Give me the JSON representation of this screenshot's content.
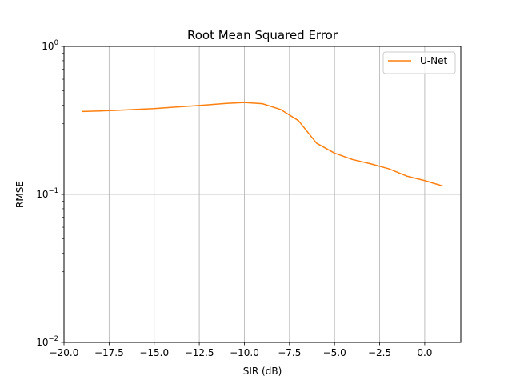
{
  "chart_data": {
    "type": "line",
    "title": "Root Mean Squared Error",
    "xlabel": "SIR (dB)",
    "ylabel": "RMSE",
    "xlim": [
      -20,
      2
    ],
    "ylim": [
      0.01,
      1
    ],
    "yscale": "log",
    "grid": true,
    "legend_position": "top-right",
    "x_ticks": [
      -20,
      -17.5,
      -15,
      -12.5,
      -10,
      -7.5,
      -5,
      -2.5,
      0
    ],
    "x_tick_labels": [
      "−20.0",
      "−17.5",
      "−15.0",
      "−12.5",
      "−10.0",
      "−7.5",
      "−5.0",
      "−2.5",
      "0.0"
    ],
    "y_ticks": [
      0.01,
      0.1,
      1
    ],
    "y_tick_labels": [
      {
        "base": "10",
        "exp": "−2"
      },
      {
        "base": "10",
        "exp": "−1"
      },
      {
        "base": "10",
        "exp": "0"
      }
    ],
    "series": [
      {
        "name": "U-Net",
        "color": "#ff7f0e",
        "x": [
          -19,
          -18,
          -17,
          -16,
          -15,
          -14,
          -13,
          -12,
          -11,
          -10,
          -9,
          -8,
          -7,
          -6,
          -5,
          -4,
          -3,
          -2,
          -1,
          0,
          1
        ],
        "y": [
          0.363,
          0.366,
          0.37,
          0.375,
          0.38,
          0.388,
          0.395,
          0.403,
          0.412,
          0.418,
          0.41,
          0.375,
          0.315,
          0.222,
          0.19,
          0.172,
          0.161,
          0.149,
          0.133,
          0.124,
          0.114
        ]
      }
    ]
  }
}
